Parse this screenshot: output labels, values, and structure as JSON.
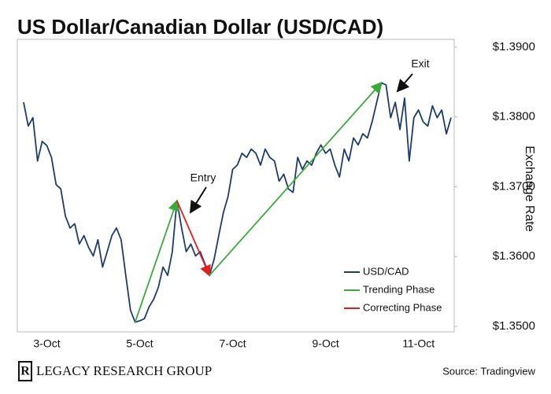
{
  "chart_data": {
    "type": "line",
    "title": "US Dollar/Canadian Dollar (USD/CAD)",
    "y_axis_label": "Exchange Rate",
    "source": "Source: Tradingview",
    "brand": "LEGACY RESEARCH GROUP",
    "annotations": [
      "Entry",
      "Exit"
    ],
    "categories": [
      null,
      null,
      null,
      null,
      null,
      "3-Oct",
      null,
      null,
      null,
      null,
      null,
      null,
      null,
      null,
      null,
      null,
      null,
      null,
      null,
      null,
      null,
      null,
      null,
      null,
      null,
      "5-Oct",
      null,
      null,
      null,
      null,
      null,
      null,
      null,
      null,
      null,
      null,
      null,
      null,
      null,
      null,
      null,
      null,
      null,
      null,
      null,
      "7-Oct",
      null,
      null,
      null,
      null,
      null,
      null,
      null,
      null,
      null,
      null,
      null,
      null,
      null,
      null,
      null,
      null,
      null,
      null,
      null,
      "9-Oct",
      null,
      null,
      null,
      null,
      null,
      null,
      null,
      null,
      null,
      null,
      null,
      null,
      null,
      null,
      null,
      null,
      null,
      null,
      null,
      "11-Oct",
      null,
      null,
      null,
      null,
      null,
      null,
      null
    ],
    "series": [
      {
        "name": "USD/CAD",
        "color": "#1f3b6e",
        "values": [
          1.3821,
          1.3787,
          1.3799,
          1.3737,
          1.3765,
          1.3759,
          1.3742,
          1.3703,
          1.3697,
          1.3658,
          1.3641,
          1.3647,
          1.3618,
          1.363,
          1.3613,
          1.3601,
          1.3624,
          1.3585,
          1.3607,
          1.363,
          1.3641,
          1.3624,
          1.3573,
          1.3523,
          1.3506,
          1.3508,
          1.3511,
          1.3528,
          1.3539,
          1.3556,
          1.3585,
          1.3573,
          1.3607,
          1.368,
          1.3641,
          1.3607,
          1.3618,
          1.3601,
          1.3607,
          1.359,
          1.3573,
          1.3596,
          1.363,
          1.3663,
          1.3686,
          1.3725,
          1.3731,
          1.3748,
          1.3742,
          1.3754,
          1.3748,
          1.3731,
          1.3754,
          1.3742,
          1.3737,
          1.3708,
          1.3718,
          1.3697,
          1.3692,
          1.3742,
          1.3725,
          1.3737,
          1.3731,
          1.3748,
          1.376,
          1.3748,
          1.3754,
          1.3731,
          1.3714,
          1.3754,
          1.3737,
          1.377,
          1.376,
          1.3776,
          1.377,
          1.3793,
          1.3821,
          1.3849,
          1.3846,
          1.3799,
          1.3821,
          1.3782,
          1.3827,
          1.3737,
          1.3799,
          1.381,
          1.3793,
          1.3787,
          1.3816,
          1.3799,
          1.381,
          1.3776,
          1.3799
        ]
      }
    ],
    "phases": [
      {
        "name": "Trending Phase",
        "color": "#3aaa3a"
      },
      {
        "name": "Correcting Phase",
        "color": "#e41e1e"
      }
    ],
    "ylim": [
      1.35,
      1.39
    ],
    "yticks": [
      {
        "value": 1.35,
        "label": "$1.3500"
      },
      {
        "value": 1.36,
        "label": "$1.3600"
      },
      {
        "value": 1.37,
        "label": "$1.3700"
      },
      {
        "value": 1.38,
        "label": "$1.3800"
      },
      {
        "value": 1.39,
        "label": "$1.3900"
      }
    ],
    "legend": "lower right",
    "grid": false
  }
}
